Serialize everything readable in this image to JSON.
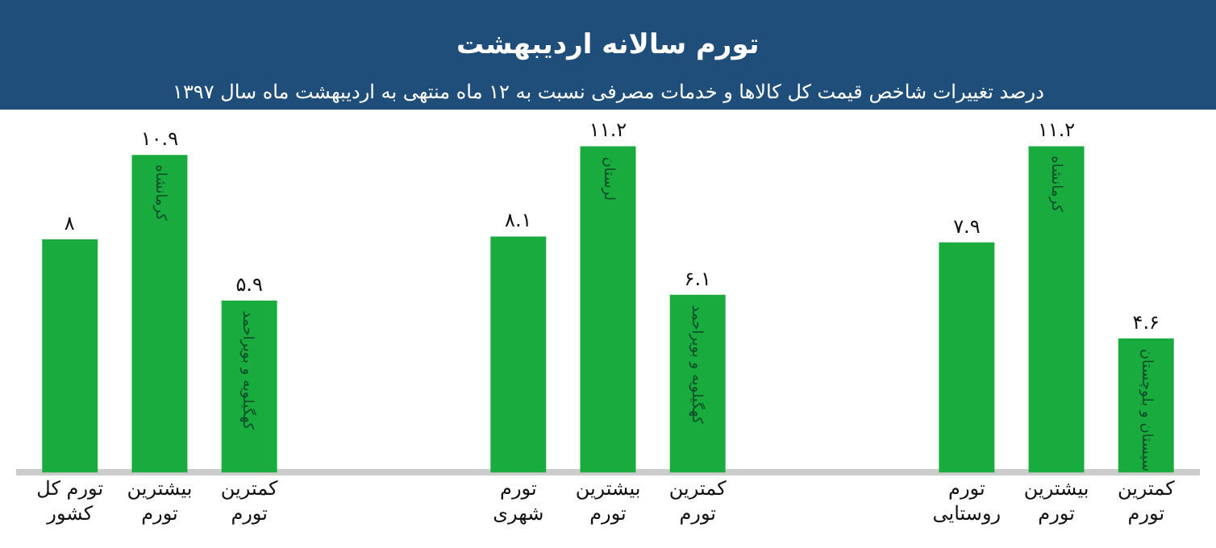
{
  "chart_data": {
    "type": "bar",
    "title": "تورم سالانه اردیبهشت",
    "subtitle": "درصد تغییرات شاخص قیمت کل کالاها و خدمات مصرفی نسبت به ۱۲ ماه منتهی به اردیبهشت ماه سال ۱۳۹۷",
    "categories": [
      "تورم کل کشور",
      "بیشترین تورم",
      "کمترین تورم",
      null,
      null,
      "تورم شهری",
      "بیشترین تورم",
      "کمترین تورم",
      null,
      null,
      "تورم روستایی",
      "بیشترین تورم",
      "کمترین تورم"
    ],
    "values": [
      8,
      10.9,
      5.9,
      null,
      null,
      8.1,
      11.2,
      6.1,
      null,
      null,
      7.9,
      11.2,
      4.6
    ],
    "value_labels": [
      "۸",
      "۱۰.۹",
      "۵.۹",
      null,
      null,
      "۸.۱",
      "۱۱.۲",
      "۶.۱",
      null,
      null,
      "۷.۹",
      "۱۱.۲",
      "۴.۶"
    ],
    "color": "#1aab3f",
    "annotations": [
      "کرمانشاه",
      "کهگیلویه و بویراحمد",
      "لرستان",
      "کهگیلویه و بویراحمد",
      "کرمانشاه",
      "سیستان و بلوچستان"
    ],
    "tick_labels": "x",
    "legend": false
  }
}
